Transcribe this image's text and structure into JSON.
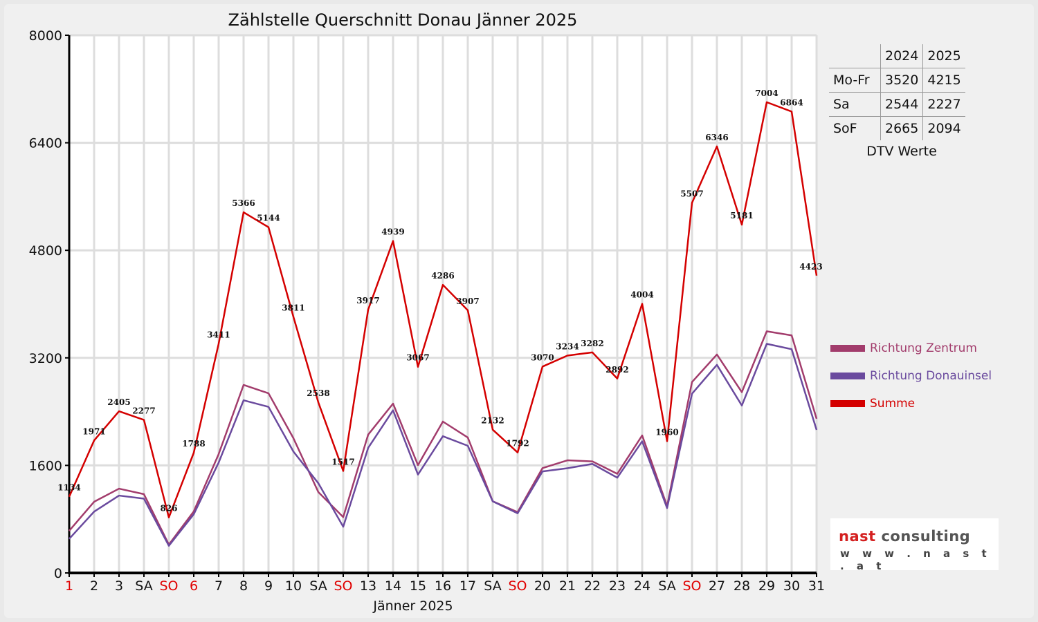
{
  "chart_data": {
    "type": "line",
    "title": "Zählstelle Querschnitt Donau Jänner 2025",
    "xlabel": "Jänner 2025",
    "ylabel": "",
    "ylim": [
      0,
      8000
    ],
    "yticks": [
      0,
      1600,
      3200,
      4800,
      6400,
      8000
    ],
    "grid": true,
    "legend_position": "right",
    "categories": [
      "1",
      "2",
      "3",
      "SA",
      "SO",
      "6",
      "7",
      "8",
      "9",
      "10",
      "SA",
      "SO",
      "13",
      "14",
      "15",
      "16",
      "17",
      "SA",
      "SO",
      "20",
      "21",
      "22",
      "23",
      "24",
      "SA",
      "SO",
      "27",
      "28",
      "29",
      "30",
      "31"
    ],
    "red_categories": [
      0,
      4,
      5,
      11,
      18,
      25
    ],
    "series": [
      {
        "name": "Richtung Zentrum",
        "color": "#a23c6c",
        "values": [
          627,
          1059,
          1254,
          1172,
          422,
          915,
          1769,
          2797,
          2673,
          2005,
          1203,
          830,
          2057,
          2519,
          1604,
          2252,
          2015,
          1066,
          905,
          1560,
          1676,
          1660,
          1475,
          2046,
          995,
          2840,
          3250,
          2690,
          3595,
          3535,
          2294
        ]
      },
      {
        "name": "Richtung Donauinsel",
        "color": "#6a4a9e",
        "values": [
          507,
          912,
          1151,
          1105,
          404,
          873,
          1642,
          2569,
          2471,
          1806,
          1335,
          687,
          1860,
          2420,
          1463,
          2034,
          1892,
          1066,
          887,
          1510,
          1558,
          1622,
          1417,
          1958,
          965,
          2667,
          3096,
          2491,
          3409,
          3329,
          2129
        ]
      },
      {
        "name": "Summe",
        "color": "#d40000",
        "show_labels": true,
        "values": [
          1134,
          1971,
          2405,
          2277,
          826,
          1788,
          3411,
          5366,
          5144,
          3811,
          2538,
          1517,
          3917,
          4939,
          3067,
          4286,
          3907,
          2132,
          1792,
          3070,
          3234,
          3282,
          2892,
          4004,
          1960,
          5507,
          6346,
          5181,
          7004,
          6864,
          4423
        ]
      }
    ]
  },
  "dtv_table": {
    "headers": [
      "",
      "2024",
      "2025"
    ],
    "rows": [
      {
        "label": "Mo-Fr",
        "y2024": "3520",
        "y2025": "4215"
      },
      {
        "label": "Sa",
        "y2024": "2544",
        "y2025": "2227"
      },
      {
        "label": "SoF",
        "y2024": "2665",
        "y2025": "2094"
      }
    ],
    "caption": "DTV Werte"
  },
  "logo": {
    "name": "nast",
    "name2": " consulting",
    "url": "w w w . n a s t . a t"
  }
}
